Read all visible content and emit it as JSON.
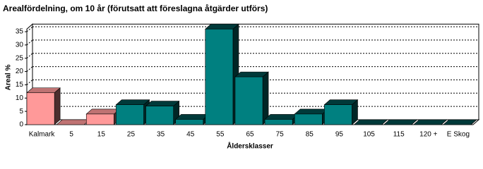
{
  "chart_data": {
    "type": "bar3d",
    "title": "Arealfördelning, om 10 år (förutsatt att föreslagna åtgärder utförs)",
    "y_label": "Areal %",
    "x_label": "Åldersklasser",
    "categories": [
      "Kalmark",
      "5",
      "15",
      "25",
      "35",
      "45",
      "55",
      "65",
      "75",
      "85",
      "95",
      "105",
      "115",
      "120 +",
      "E Skog"
    ],
    "values": [
      12,
      0,
      4,
      7.5,
      7,
      2,
      36,
      18,
      2,
      4,
      7.5,
      0,
      0,
      0,
      0
    ],
    "colors": [
      "#ff9999",
      "#ff9999",
      "#ff9999",
      "#008080",
      "#008080",
      "#008080",
      "#008080",
      "#008080",
      "#008080",
      "#008080",
      "#008080",
      "#008080",
      "#008080",
      "#008080",
      "#008080"
    ],
    "ylim": [
      0,
      36
    ],
    "yticks": [
      0,
      5,
      10,
      15,
      20,
      25,
      30,
      35
    ],
    "grid": true
  }
}
